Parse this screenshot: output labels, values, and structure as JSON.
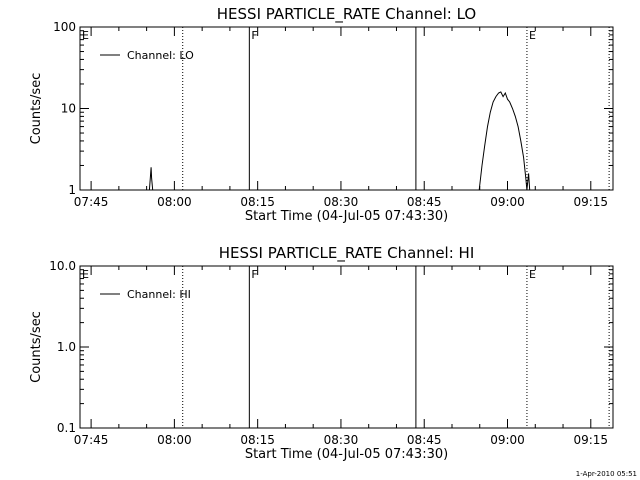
{
  "footer": {
    "timestamp": "1-Apr-2010 05:51"
  },
  "chart_data": [
    {
      "type": "line",
      "title": "HESSI PARTICLE_RATE Channel: LO",
      "xlabel": "Start Time (04-Jul-05 07:43:30)",
      "ylabel": "Counts/sec",
      "yscale": "log",
      "ylim": [
        1,
        100
      ],
      "ytick_values": [
        1,
        10,
        100
      ],
      "ytick_labels": [
        "1",
        "10",
        "100"
      ],
      "xlim_minutes": [
        -2,
        94
      ],
      "xtick_values": [
        0,
        15,
        30,
        45,
        60,
        75,
        90
      ],
      "xtick_labels": [
        "07:45",
        "08:00",
        "08:15",
        "08:30",
        "08:45",
        "09:00",
        "09:15"
      ],
      "legend": {
        "position": "top-left",
        "entries": [
          "Channel: LO"
        ]
      },
      "series": [
        {
          "name": "Channel: LO",
          "segments": [
            [
              [
                10.5,
                1
              ],
              [
                10.7,
                1.5
              ],
              [
                10.8,
                1.9
              ],
              [
                10.9,
                1.4
              ],
              [
                11.1,
                1
              ]
            ],
            [
              [
                69.9,
                1
              ],
              [
                70.4,
                2.0
              ],
              [
                70.9,
                3.5
              ],
              [
                71.4,
                6
              ],
              [
                71.9,
                9
              ],
              [
                72.4,
                12
              ],
              [
                72.9,
                14
              ],
              [
                73.4,
                15.5
              ],
              [
                73.8,
                16
              ],
              [
                74.2,
                14
              ],
              [
                74.6,
                15.5
              ],
              [
                75.0,
                13
              ],
              [
                75.4,
                12
              ],
              [
                75.9,
                10
              ],
              [
                76.4,
                8
              ],
              [
                76.9,
                6
              ],
              [
                77.4,
                4
              ],
              [
                77.9,
                2.5
              ],
              [
                78.3,
                1.4
              ],
              [
                78.5,
                1
              ],
              [
                78.8,
                1.6
              ],
              [
                79.0,
                1
              ]
            ]
          ]
        }
      ],
      "markers": [
        {
          "minute": -2,
          "style": "solid",
          "label": "E"
        },
        {
          "minute": 16.5,
          "style": "dotted",
          "label": ""
        },
        {
          "minute": 28.5,
          "style": "solid",
          "label": "F"
        },
        {
          "minute": 58.5,
          "style": "solid",
          "label": ""
        },
        {
          "minute": 78.5,
          "style": "dotted",
          "label": "E"
        },
        {
          "minute": 93.3,
          "style": "dotted",
          "label": ""
        }
      ]
    },
    {
      "type": "line",
      "title": "HESSI PARTICLE_RATE Channel: HI",
      "xlabel": "Start Time (04-Jul-05 07:43:30)",
      "ylabel": "Counts/sec",
      "yscale": "log",
      "ylim": [
        0.1,
        10
      ],
      "ytick_values": [
        0.1,
        1,
        10
      ],
      "ytick_labels": [
        "0.1",
        "1.0",
        "10.0"
      ],
      "xlim_minutes": [
        -2,
        94
      ],
      "xtick_values": [
        0,
        15,
        30,
        45,
        60,
        75,
        90
      ],
      "xtick_labels": [
        "07:45",
        "08:00",
        "08:15",
        "08:30",
        "08:45",
        "09:00",
        "09:15"
      ],
      "legend": {
        "position": "top-left",
        "entries": [
          "Channel: HI"
        ]
      },
      "series": [
        {
          "name": "Channel: HI",
          "segments": []
        }
      ],
      "markers": [
        {
          "minute": -2,
          "style": "solid",
          "label": "E"
        },
        {
          "minute": 16.5,
          "style": "dotted",
          "label": ""
        },
        {
          "minute": 28.5,
          "style": "solid",
          "label": "F"
        },
        {
          "minute": 58.5,
          "style": "solid",
          "label": ""
        },
        {
          "minute": 78.5,
          "style": "dotted",
          "label": "E"
        },
        {
          "minute": 93.3,
          "style": "dotted",
          "label": ""
        }
      ]
    }
  ]
}
